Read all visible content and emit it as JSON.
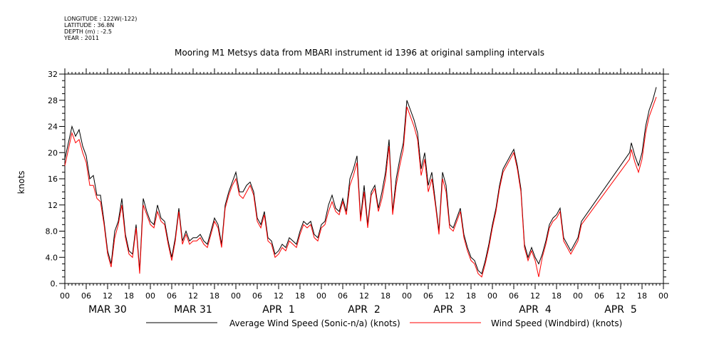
{
  "header": {
    "longitude": "LONGITUDE : 122W(-122)",
    "latitude": "LATITUDE : 36.8N",
    "depth": "DEPTH (m) : -2.5",
    "year": "YEAR : 2011"
  },
  "chart_data": {
    "type": "line",
    "title": "Mooring M1 Metsys data from MBARI instrument id 1396 at original sampling intervals",
    "xlabel": "",
    "ylabel": "knots",
    "ylim": [
      0,
      32
    ],
    "y_ticks": [
      "0.",
      "4.0",
      "8.0",
      "12",
      "16",
      "20",
      "24",
      "28",
      "32"
    ],
    "x_range_hours": [
      0,
      168
    ],
    "x_tick_labels": [
      "00",
      "06",
      "12",
      "18",
      "00",
      "06",
      "12",
      "18",
      "00",
      "06",
      "12",
      "18",
      "00",
      "06",
      "12",
      "18",
      "00",
      "06",
      "12",
      "18",
      "00",
      "06",
      "12",
      "18",
      "00",
      "06",
      "12",
      "18",
      "00"
    ],
    "day_labels": [
      "MAR 30",
      "MAR 31",
      "APR  1",
      "APR  2",
      "APR  3",
      "APR  4",
      "APR  5"
    ],
    "legend_placement": "bottom",
    "grid": false,
    "series": [
      {
        "name": "Average Wind Speed (Sonic-n/a) (knots)",
        "color": "#000000",
        "points": [
          [
            0,
            19
          ],
          [
            1,
            21.5
          ],
          [
            2,
            24
          ],
          [
            3,
            22.5
          ],
          [
            4,
            23.5
          ],
          [
            5,
            21
          ],
          [
            6,
            19.5
          ],
          [
            7,
            16
          ],
          [
            8,
            16.5
          ],
          [
            9,
            13.5
          ],
          [
            10,
            13.5
          ],
          [
            11,
            9.5
          ],
          [
            12,
            5
          ],
          [
            13,
            3
          ],
          [
            14,
            8
          ],
          [
            15,
            9.5
          ],
          [
            16,
            13
          ],
          [
            17,
            7.5
          ],
          [
            18,
            5
          ],
          [
            19,
            4.5
          ],
          [
            20,
            9
          ],
          [
            21,
            2
          ],
          [
            22,
            13
          ],
          [
            23,
            11
          ],
          [
            24,
            9.5
          ],
          [
            25,
            9
          ],
          [
            26,
            12
          ],
          [
            27,
            10
          ],
          [
            28,
            9.5
          ],
          [
            29,
            6.5
          ],
          [
            30,
            4
          ],
          [
            31,
            7
          ],
          [
            32,
            11.5
          ],
          [
            33,
            6.5
          ],
          [
            34,
            8
          ],
          [
            35,
            6.5
          ],
          [
            36,
            7
          ],
          [
            37,
            7
          ],
          [
            38,
            7.5
          ],
          [
            39,
            6.5
          ],
          [
            40,
            6
          ],
          [
            41,
            8
          ],
          [
            42,
            10
          ],
          [
            43,
            9
          ],
          [
            44,
            6
          ],
          [
            45,
            12
          ],
          [
            46,
            14
          ],
          [
            47,
            15.5
          ],
          [
            48,
            17
          ],
          [
            49,
            14
          ],
          [
            50,
            14
          ],
          [
            51,
            15
          ],
          [
            52,
            15.5
          ],
          [
            53,
            14
          ],
          [
            54,
            10
          ],
          [
            55,
            9
          ],
          [
            56,
            11
          ],
          [
            57,
            7
          ],
          [
            58,
            6.5
          ],
          [
            59,
            4.5
          ],
          [
            60,
            5
          ],
          [
            61,
            6
          ],
          [
            62,
            5.5
          ],
          [
            63,
            7
          ],
          [
            64,
            6.5
          ],
          [
            65,
            6
          ],
          [
            66,
            8
          ],
          [
            67,
            9.5
          ],
          [
            68,
            9
          ],
          [
            69,
            9.5
          ],
          [
            70,
            7.5
          ],
          [
            71,
            7
          ],
          [
            72,
            9
          ],
          [
            73,
            9.5
          ],
          [
            74,
            12
          ],
          [
            75,
            13.5
          ],
          [
            76,
            11.5
          ],
          [
            77,
            11
          ],
          [
            78,
            13
          ],
          [
            79,
            11
          ],
          [
            80,
            16
          ],
          [
            81,
            17.5
          ],
          [
            82,
            19.5
          ],
          [
            83,
            10
          ],
          [
            84,
            15
          ],
          [
            85,
            9
          ],
          [
            86,
            14
          ],
          [
            87,
            15
          ],
          [
            88,
            11.5
          ],
          [
            89,
            14
          ],
          [
            90,
            17
          ],
          [
            91,
            22
          ],
          [
            92,
            11
          ],
          [
            93,
            16
          ],
          [
            94,
            19
          ],
          [
            95,
            21.5
          ],
          [
            96,
            28
          ],
          [
            97,
            26.5
          ],
          [
            98,
            25
          ],
          [
            99,
            23
          ],
          [
            100,
            17.5
          ],
          [
            101,
            20
          ],
          [
            102,
            15
          ],
          [
            103,
            17
          ],
          [
            104,
            12.5
          ],
          [
            105,
            8
          ],
          [
            106,
            17
          ],
          [
            107,
            15
          ],
          [
            108,
            9
          ],
          [
            109,
            8.5
          ],
          [
            110,
            10
          ],
          [
            111,
            11.5
          ],
          [
            112,
            7.5
          ],
          [
            113,
            5.5
          ],
          [
            114,
            4
          ],
          [
            115,
            3.5
          ],
          [
            116,
            2
          ],
          [
            117,
            1.5
          ],
          [
            118,
            3.5
          ],
          [
            119,
            6
          ],
          [
            120,
            9
          ],
          [
            121,
            11.5
          ],
          [
            122,
            15
          ],
          [
            123,
            17.5
          ],
          [
            124,
            18.5
          ],
          [
            125,
            19.5
          ],
          [
            126,
            20.5
          ],
          [
            127,
            18
          ],
          [
            128,
            14.5
          ],
          [
            129,
            6
          ],
          [
            130,
            4
          ],
          [
            131,
            5.5
          ],
          [
            132,
            4
          ],
          [
            133,
            3
          ],
          [
            134,
            4.5
          ],
          [
            135,
            6.5
          ],
          [
            136,
            9
          ],
          [
            137,
            10
          ],
          [
            138,
            10.5
          ],
          [
            139,
            11.5
          ],
          [
            140,
            7
          ],
          [
            141,
            6
          ],
          [
            142,
            5
          ],
          [
            143,
            6
          ],
          [
            144,
            7
          ],
          [
            145,
            9.5
          ],
          [
            158.5,
            20
          ],
          [
            159,
            21.5
          ],
          [
            160,
            19.5
          ],
          [
            161,
            18
          ],
          [
            162,
            20
          ],
          [
            163,
            24
          ],
          [
            164,
            26.5
          ],
          [
            165,
            28
          ],
          [
            166,
            30
          ]
        ]
      },
      {
        "name": "Wind Speed (Windbird) (knots)",
        "color": "#ff0000",
        "points": [
          [
            0,
            18
          ],
          [
            1,
            20.5
          ],
          [
            2,
            23
          ],
          [
            3,
            21.5
          ],
          [
            4,
            22
          ],
          [
            5,
            20
          ],
          [
            6,
            18.5
          ],
          [
            7,
            15
          ],
          [
            8,
            15
          ],
          [
            9,
            13
          ],
          [
            10,
            12.5
          ],
          [
            11,
            9
          ],
          [
            12,
            4.5
          ],
          [
            13,
            2.5
          ],
          [
            14,
            7
          ],
          [
            15,
            9
          ],
          [
            16,
            12
          ],
          [
            17,
            7
          ],
          [
            18,
            4.5
          ],
          [
            19,
            4
          ],
          [
            20,
            8.5
          ],
          [
            21,
            1.5
          ],
          [
            22,
            12
          ],
          [
            23,
            10.5
          ],
          [
            24,
            9
          ],
          [
            25,
            8.5
          ],
          [
            26,
            11
          ],
          [
            27,
            9.5
          ],
          [
            28,
            9
          ],
          [
            29,
            6
          ],
          [
            30,
            3.5
          ],
          [
            31,
            6.5
          ],
          [
            32,
            11
          ],
          [
            33,
            6
          ],
          [
            34,
            7.5
          ],
          [
            35,
            6
          ],
          [
            36,
            6.5
          ],
          [
            37,
            6.5
          ],
          [
            38,
            7
          ],
          [
            39,
            6
          ],
          [
            40,
            5.5
          ],
          [
            41,
            7.5
          ],
          [
            42,
            9.5
          ],
          [
            43,
            8.5
          ],
          [
            44,
            5.5
          ],
          [
            45,
            11.5
          ],
          [
            46,
            13.5
          ],
          [
            47,
            15
          ],
          [
            48,
            16
          ],
          [
            49,
            13.5
          ],
          [
            50,
            13
          ],
          [
            51,
            14
          ],
          [
            52,
            15
          ],
          [
            53,
            13.5
          ],
          [
            54,
            9.5
          ],
          [
            55,
            8.5
          ],
          [
            56,
            10.5
          ],
          [
            57,
            6.5
          ],
          [
            58,
            6
          ],
          [
            59,
            4
          ],
          [
            60,
            4.5
          ],
          [
            61,
            5.5
          ],
          [
            62,
            5
          ],
          [
            63,
            6.5
          ],
          [
            64,
            6
          ],
          [
            65,
            5.5
          ],
          [
            66,
            7.5
          ],
          [
            67,
            9
          ],
          [
            68,
            8.5
          ],
          [
            69,
            9
          ],
          [
            70,
            7
          ],
          [
            71,
            6.5
          ],
          [
            72,
            8.5
          ],
          [
            73,
            9
          ],
          [
            74,
            11
          ],
          [
            75,
            12.5
          ],
          [
            76,
            11
          ],
          [
            77,
            10.5
          ],
          [
            78,
            12.5
          ],
          [
            79,
            10.5
          ],
          [
            80,
            15
          ],
          [
            81,
            16.5
          ],
          [
            82,
            18.5
          ],
          [
            83,
            9.5
          ],
          [
            84,
            14
          ],
          [
            85,
            8.5
          ],
          [
            86,
            13.5
          ],
          [
            87,
            14.5
          ],
          [
            88,
            11
          ],
          [
            89,
            13
          ],
          [
            90,
            16
          ],
          [
            91,
            21
          ],
          [
            92,
            10.5
          ],
          [
            93,
            15
          ],
          [
            94,
            18
          ],
          [
            95,
            20.5
          ],
          [
            96,
            27
          ],
          [
            97,
            25.5
          ],
          [
            98,
            24
          ],
          [
            99,
            22
          ],
          [
            100,
            16.5
          ],
          [
            101,
            19
          ],
          [
            102,
            14
          ],
          [
            103,
            16
          ],
          [
            104,
            12
          ],
          [
            105,
            7.5
          ],
          [
            106,
            16
          ],
          [
            107,
            14
          ],
          [
            108,
            8.5
          ],
          [
            109,
            8
          ],
          [
            110,
            9.5
          ],
          [
            111,
            11
          ],
          [
            112,
            7
          ],
          [
            113,
            5
          ],
          [
            114,
            3.5
          ],
          [
            115,
            3
          ],
          [
            116,
            1.5
          ],
          [
            117,
            1
          ],
          [
            118,
            3
          ],
          [
            119,
            5.5
          ],
          [
            120,
            8.5
          ],
          [
            121,
            11
          ],
          [
            122,
            14.5
          ],
          [
            123,
            17
          ],
          [
            124,
            18
          ],
          [
            125,
            19
          ],
          [
            126,
            20
          ],
          [
            127,
            17.5
          ],
          [
            128,
            14
          ],
          [
            129,
            5.5
          ],
          [
            130,
            3.5
          ],
          [
            131,
            5
          ],
          [
            132,
            3.5
          ],
          [
            133,
            1
          ],
          [
            134,
            4
          ],
          [
            135,
            6
          ],
          [
            136,
            8.5
          ],
          [
            137,
            9.5
          ],
          [
            138,
            10
          ],
          [
            139,
            11
          ],
          [
            140,
            6.5
          ],
          [
            141,
            5.5
          ],
          [
            142,
            4.5
          ],
          [
            143,
            5.5
          ],
          [
            144,
            6.5
          ],
          [
            145,
            9
          ],
          [
            158.5,
            19
          ],
          [
            159,
            20.5
          ],
          [
            160,
            18.5
          ],
          [
            161,
            17
          ],
          [
            162,
            19
          ],
          [
            163,
            23
          ],
          [
            164,
            25.5
          ],
          [
            165,
            27
          ],
          [
            166,
            28.5
          ]
        ]
      }
    ]
  }
}
